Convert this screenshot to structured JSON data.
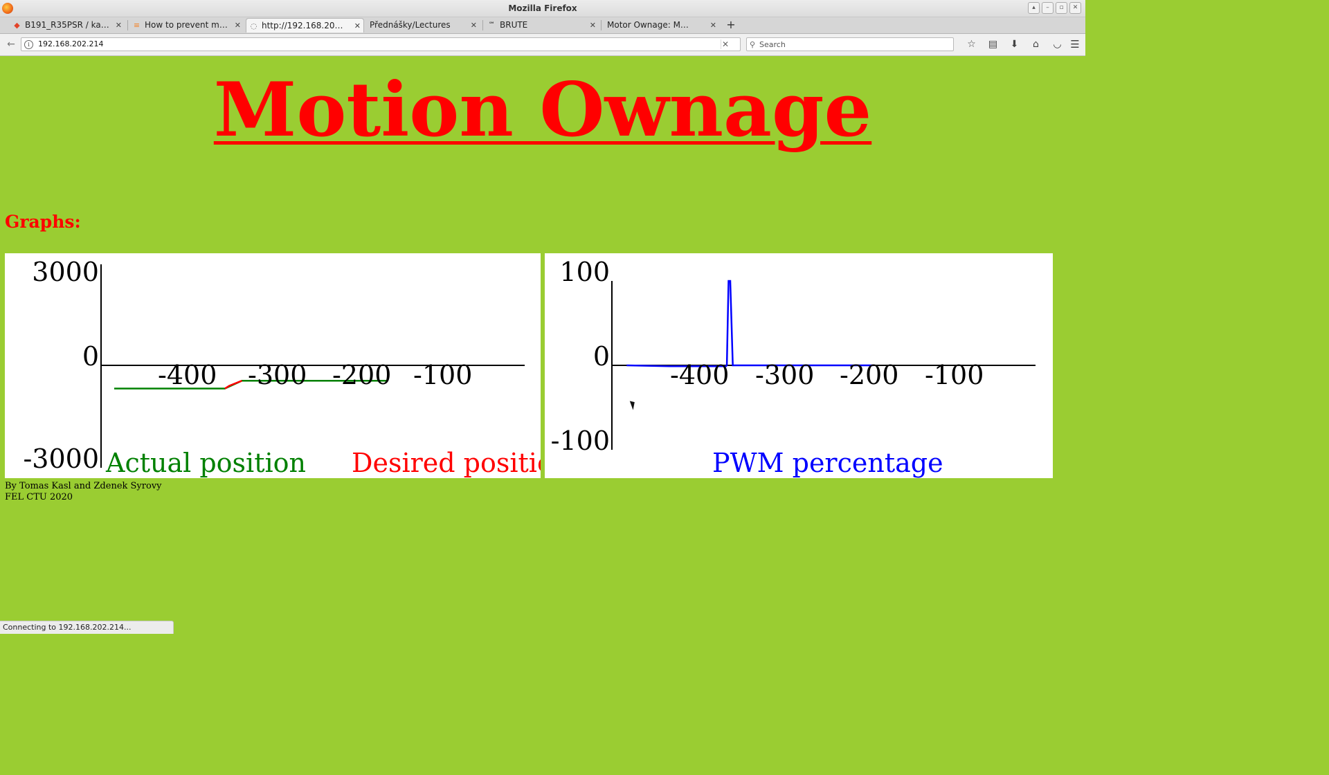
{
  "window": {
    "title": "Mozilla Firefox"
  },
  "tabs": [
    {
      "label": "B191_R35PSR / kaslt...",
      "icon": "gitlab-icon",
      "active": false
    },
    {
      "label": "How to prevent multi...",
      "icon": "stackoverflow-icon",
      "active": false
    },
    {
      "label": "http://192.168.202.214/",
      "icon": "loading-icon",
      "active": true
    },
    {
      "label": "Přednášky/Lectures",
      "icon": "",
      "active": false
    },
    {
      "label": "BRUTE",
      "icon": "brute-icon",
      "active": false
    },
    {
      "label": "Motor Ownage: Motion ...",
      "icon": "",
      "active": false
    }
  ],
  "navbar": {
    "url": "192.168.202.214",
    "search_placeholder": "Search"
  },
  "page": {
    "title": "Motion Ownage",
    "graphs_heading": "Graphs:",
    "footer_line1": "By Tomas Kasl and Zdenek Syrovy",
    "footer_line2": "FEL CTU 2020"
  },
  "status_text": "Connecting to 192.168.202.214...",
  "colors": {
    "page_background": "#9acd32",
    "title": "#ff0000",
    "actual_position": "#008000",
    "desired_position": "#ff0000",
    "pwm": "#0000ff"
  },
  "chart_data": [
    {
      "type": "line",
      "title": "",
      "x_ticks": [
        -400,
        -300,
        -200,
        -100
      ],
      "y_ticks": [
        3000,
        0,
        -3000
      ],
      "xlim": [
        -500,
        0
      ],
      "ylim": [
        -3000,
        3000
      ],
      "legend": "bottom",
      "series": [
        {
          "name": "Actual position",
          "color": "#008000",
          "x": [
            -500,
            -370,
            -350,
            -300,
            -200,
            -180
          ],
          "y": [
            -680,
            -680,
            -450,
            -450,
            -450,
            -450
          ]
        },
        {
          "name": "Desired position",
          "color": "#ff0000",
          "x": [
            -370,
            -365,
            -350
          ],
          "y": [
            -680,
            -600,
            -450
          ]
        }
      ]
    },
    {
      "type": "line",
      "title": "",
      "x_ticks": [
        -400,
        -300,
        -200,
        -100
      ],
      "y_ticks": [
        100,
        0,
        -100
      ],
      "xlim": [
        -500,
        0
      ],
      "ylim": [
        -100,
        100
      ],
      "legend": "bottom",
      "series": [
        {
          "name": "PWM percentage",
          "color": "#0000ff",
          "x": [
            -500,
            -450,
            -383,
            -382,
            -380,
            -378,
            -375,
            -373,
            -300,
            -210
          ],
          "y": [
            0,
            -1,
            -1,
            0,
            100,
            100,
            0,
            0,
            0,
            0
          ]
        }
      ]
    }
  ]
}
